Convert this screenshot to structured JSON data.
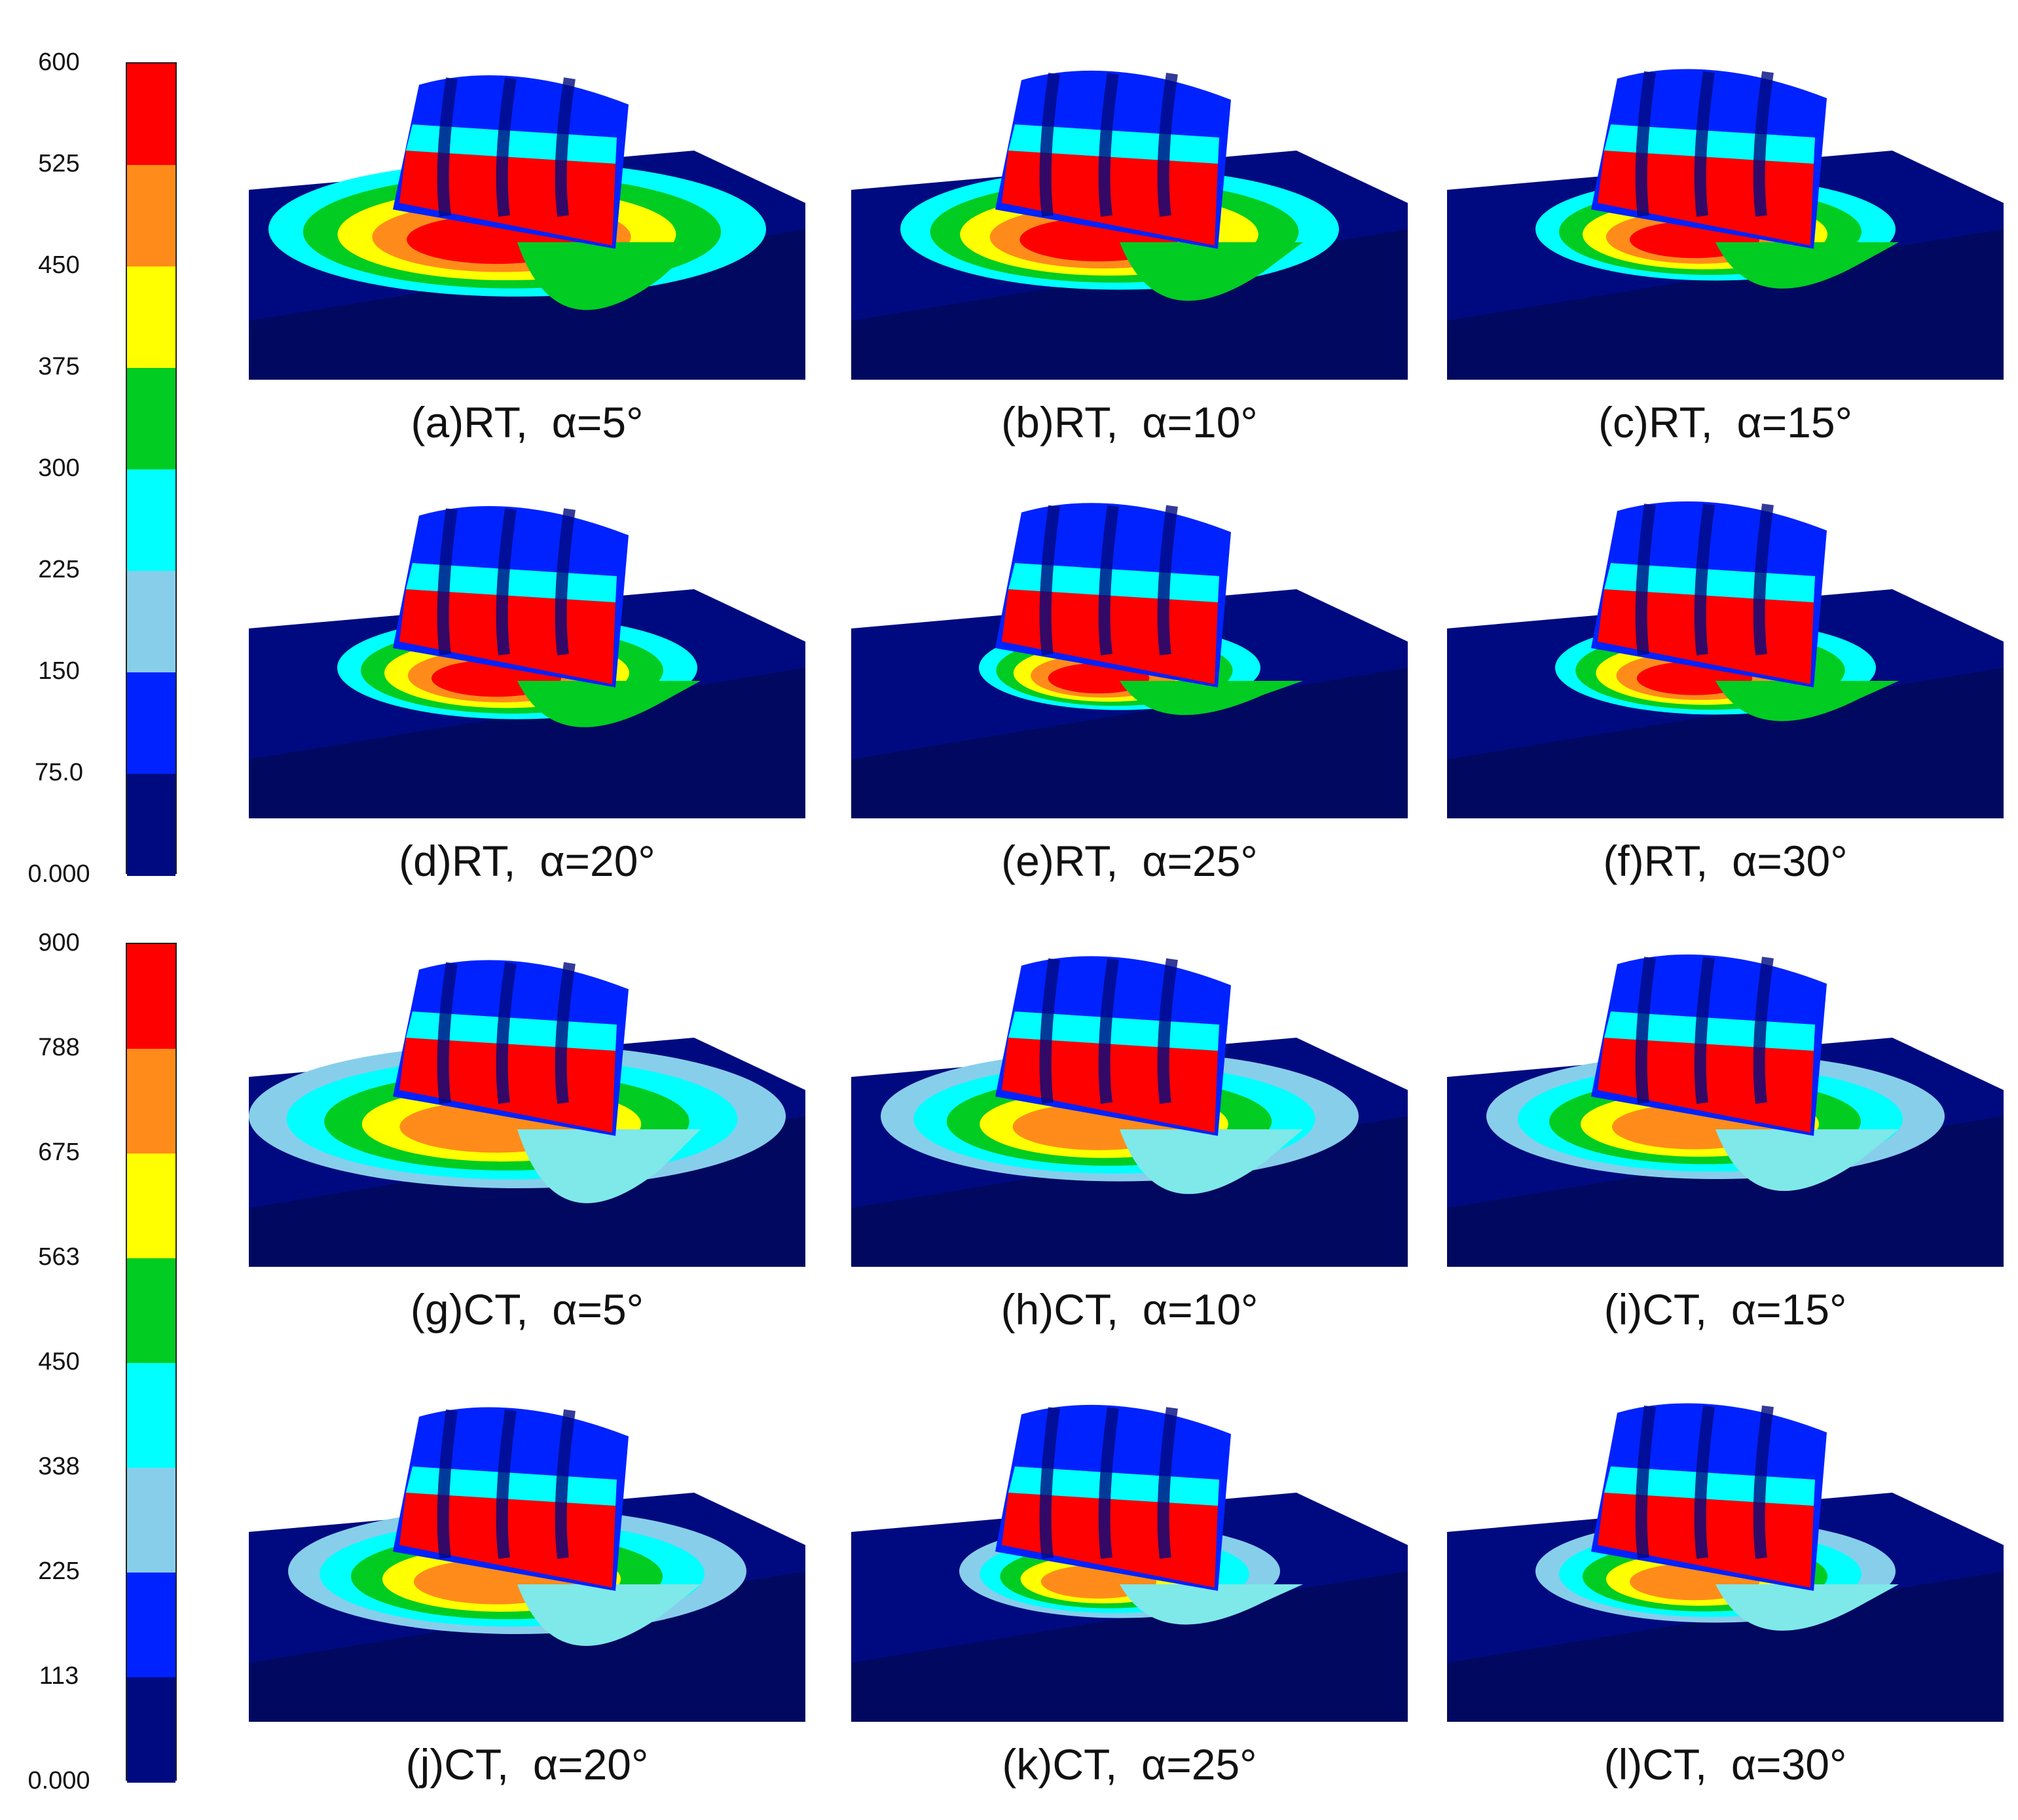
{
  "legends": [
    {
      "id": "rt",
      "ticks": [
        "600",
        "525",
        "450",
        "375",
        "300",
        "225",
        "150",
        "75.0",
        "0.000"
      ],
      "colors": [
        "#ff0000",
        "#ff8c1a",
        "#ffff00",
        "#00cc22",
        "#00ffff",
        "#87ceeb",
        "#0022ff",
        "#000a80"
      ]
    },
    {
      "id": "ct",
      "ticks": [
        "900",
        "788",
        "675",
        "563",
        "450",
        "338",
        "225",
        "113",
        "0.000"
      ],
      "colors": [
        "#ff0000",
        "#ff8c1a",
        "#ffff00",
        "#00cc22",
        "#00ffff",
        "#87ceeb",
        "#0022ff",
        "#000a80"
      ]
    }
  ],
  "panels": [
    {
      "id": "a",
      "caption": "(a)RT,  α=5°"
    },
    {
      "id": "b",
      "caption": "(b)RT,  α=10°"
    },
    {
      "id": "c",
      "caption": "(c)RT,  α=15°"
    },
    {
      "id": "d",
      "caption": "(d)RT,  α=20°"
    },
    {
      "id": "e",
      "caption": "(e)RT,  α=25°"
    },
    {
      "id": "f",
      "caption": "(f)RT,  α=30°"
    },
    {
      "id": "g",
      "caption": "(g)CT,  α=5°"
    },
    {
      "id": "h",
      "caption": "(h)CT,  α=10°"
    },
    {
      "id": "i",
      "caption": "(i)CT,  α=15°"
    },
    {
      "id": "j",
      "caption": "(j)CT,  α=20°"
    },
    {
      "id": "k",
      "caption": "(k)CT,  α=25°"
    },
    {
      "id": "l",
      "caption": "(l)CT,  α=30°"
    }
  ],
  "colors": {
    "block": "#000a80",
    "block_dark": "#000860",
    "hot": "#ff0000",
    "orange": "#ff8c1a",
    "yellow": "#ffff00",
    "green": "#00cc22",
    "cyan": "#00ffff",
    "light_blue": "#87ceeb",
    "blue": "#0022ff",
    "pale_cyan": "#7fe8e8"
  }
}
